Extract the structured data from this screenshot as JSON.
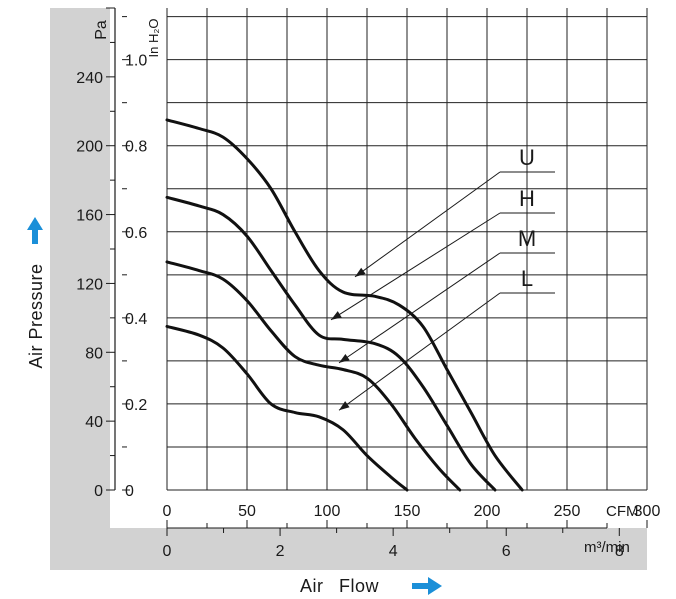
{
  "chart_data": {
    "type": "line",
    "title": "",
    "xlabel": "Air Flow",
    "ylabel": "Air Pressure",
    "grid": true,
    "x_axes": [
      {
        "unit": "CFM",
        "range": [
          0,
          300
        ],
        "ticks": [
          "0",
          "50",
          "100",
          "150",
          "200",
          "250",
          "300"
        ]
      },
      {
        "unit": "m³/min",
        "range": [
          0,
          8.49
        ],
        "ticks": [
          "0",
          "2",
          "4",
          "6",
          "8"
        ]
      }
    ],
    "y_axes": [
      {
        "unit": "Pa",
        "range": [
          0,
          280
        ],
        "ticks": [
          "0",
          "40",
          "80",
          "120",
          "160",
          "200",
          "240"
        ]
      },
      {
        "unit": "In H₂O",
        "range": [
          0,
          1.12
        ],
        "ticks": [
          "0",
          "0.2",
          "0.4",
          "0.6",
          "0.8",
          "1.0"
        ]
      }
    ],
    "x_unit": "CFM",
    "y_unit": "In H₂O",
    "series": [
      {
        "name": "U",
        "x": [
          0,
          20,
          35,
          50,
          65,
          80,
          95,
          110,
          130,
          145,
          160,
          175,
          190,
          205,
          222
        ],
        "y": [
          0.86,
          0.84,
          0.82,
          0.77,
          0.7,
          0.6,
          0.51,
          0.46,
          0.45,
          0.43,
          0.38,
          0.28,
          0.18,
          0.08,
          0.0
        ]
      },
      {
        "name": "H",
        "x": [
          0,
          20,
          35,
          50,
          65,
          80,
          95,
          110,
          130,
          145,
          160,
          175,
          190,
          205
        ],
        "y": [
          0.68,
          0.66,
          0.64,
          0.59,
          0.51,
          0.43,
          0.36,
          0.35,
          0.34,
          0.31,
          0.24,
          0.15,
          0.06,
          0.0
        ]
      },
      {
        "name": "M",
        "x": [
          0,
          20,
          35,
          50,
          65,
          80,
          95,
          110,
          125,
          140,
          155,
          170,
          183
        ],
        "y": [
          0.53,
          0.51,
          0.49,
          0.44,
          0.37,
          0.31,
          0.29,
          0.28,
          0.26,
          0.2,
          0.12,
          0.05,
          0.0
        ]
      },
      {
        "name": "L",
        "x": [
          0,
          20,
          35,
          50,
          65,
          80,
          95,
          110,
          125,
          140,
          150
        ],
        "y": [
          0.38,
          0.36,
          0.33,
          0.27,
          0.2,
          0.18,
          0.17,
          0.14,
          0.08,
          0.03,
          0.0
        ]
      }
    ],
    "curve_labels": [
      "U",
      "H",
      "M",
      "L"
    ],
    "colors": {
      "curve": "#111111",
      "grid": "#222222",
      "frame": "#d2d2d2",
      "arrow": "#1b8fd8"
    }
  }
}
